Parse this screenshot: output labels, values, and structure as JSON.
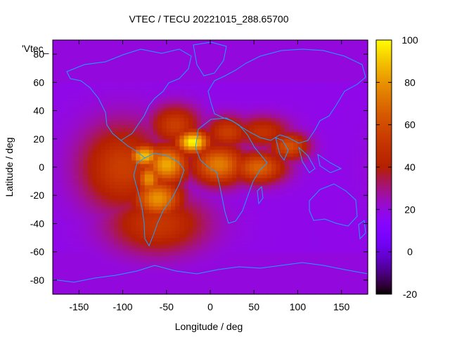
{
  "chart_data": {
    "type": "heatmap",
    "title": "VTEC / TECU 20221015_288.65700",
    "xlabel": "Longitude / deg",
    "ylabel": "Latitude / deg",
    "key_label": "'Vtec_",
    "xlim": [
      -180,
      180
    ],
    "ylim": [
      -90,
      90
    ],
    "x_ticks": [
      -150,
      -100,
      -50,
      0,
      50,
      100,
      150
    ],
    "y_ticks": [
      -80,
      -60,
      -40,
      -20,
      0,
      20,
      40,
      60,
      80
    ],
    "colorbar": {
      "range": [
        -20,
        100
      ],
      "ticks": [
        -20,
        0,
        20,
        40,
        60,
        80,
        100
      ],
      "palette": "gnuplot rgbformulae 7,5,15 (black-purple-red-orange-yellow)"
    },
    "background_value": 18,
    "grid": false,
    "legend": "top-left",
    "hotspots": [
      {
        "lon": -20,
        "lat": 18,
        "value": 100,
        "sigma_lon": 14,
        "sigma_lat": 6
      },
      {
        "lon": -75,
        "lat": 8,
        "value": 90,
        "sigma_lon": 14,
        "sigma_lat": 6
      },
      {
        "lon": -50,
        "lat": 2,
        "value": 85,
        "sigma_lon": 18,
        "sigma_lat": 10
      },
      {
        "lon": -60,
        "lat": -22,
        "value": 80,
        "sigma_lon": 20,
        "sigma_lat": 10
      },
      {
        "lon": -70,
        "lat": -8,
        "value": 80,
        "sigma_lon": 10,
        "sigma_lat": 8
      },
      {
        "lon": 10,
        "lat": 2,
        "value": 75,
        "sigma_lon": 22,
        "sigma_lat": 10
      },
      {
        "lon": 55,
        "lat": 0,
        "value": 68,
        "sigma_lon": 22,
        "sigma_lat": 8
      },
      {
        "lon": 90,
        "lat": 15,
        "value": 62,
        "sigma_lon": 16,
        "sigma_lat": 7
      },
      {
        "lon": -100,
        "lat": 0,
        "value": 55,
        "sigma_lon": 35,
        "sigma_lat": 22
      },
      {
        "lon": -60,
        "lat": -40,
        "value": 52,
        "sigma_lon": 40,
        "sigma_lat": 15
      },
      {
        "lon": 20,
        "lat": 25,
        "value": 55,
        "sigma_lon": 18,
        "sigma_lat": 8
      },
      {
        "lon": 60,
        "lat": 25,
        "value": 50,
        "sigma_lon": 22,
        "sigma_lat": 8
      },
      {
        "lon": -40,
        "lat": 30,
        "value": 55,
        "sigma_lon": 20,
        "sigma_lat": 10
      }
    ],
    "colors": {
      "background": "#ffffff",
      "axis": "#000000",
      "coastline": "#1ea0ff"
    }
  }
}
